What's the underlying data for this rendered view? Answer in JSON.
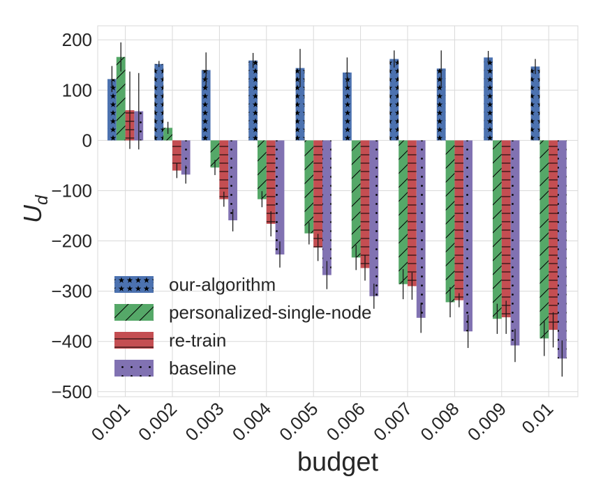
{
  "chart_data": {
    "type": "bar",
    "xlabel": "budget",
    "ylabel": "U_d",
    "ylim": [
      -510,
      228
    ],
    "yticks": [
      200,
      100,
      0,
      -100,
      -200,
      -300,
      -400,
      -500
    ],
    "ytick_labels": [
      "200",
      "100",
      "0",
      "−100",
      "−200",
      "−300",
      "−400",
      "−500"
    ],
    "categories": [
      "0.001",
      "0.002",
      "0.003",
      "0.004",
      "0.005",
      "0.006",
      "0.007",
      "0.008",
      "0.009",
      "0.01"
    ],
    "grid": true,
    "legend_position": "lower-left",
    "series": [
      {
        "name": "our-algorithm",
        "color": "#4c72b0",
        "hatch": "stars",
        "values": [
          122,
          152,
          140,
          159,
          144,
          135,
          162,
          143,
          165,
          147
        ],
        "errors": [
          26,
          6,
          35,
          15,
          38,
          30,
          17,
          36,
          13,
          15
        ]
      },
      {
        "name": "personalized-single-node",
        "color": "#55a868",
        "hatch": "diagonal",
        "values": [
          166,
          25,
          -54,
          -117,
          -185,
          -233,
          -286,
          -322,
          -355,
          -394
        ],
        "errors": [
          29,
          12,
          15,
          16,
          22,
          25,
          30,
          30,
          30,
          35
        ]
      },
      {
        "name": "re-train",
        "color": "#c44e52",
        "hatch": "horizontal",
        "values": [
          60,
          -60,
          -117,
          -166,
          -213,
          -254,
          -290,
          -318,
          -352,
          -377
        ],
        "errors": [
          77,
          15,
          15,
          25,
          27,
          25,
          27,
          14,
          33,
          35
        ]
      },
      {
        "name": "baseline",
        "color": "#8172b2",
        "hatch": "dots",
        "values": [
          58,
          -68,
          -159,
          -227,
          -268,
          -310,
          -353,
          -380,
          -408,
          -434
        ],
        "errors": [
          76,
          18,
          22,
          26,
          28,
          25,
          30,
          33,
          33,
          36
        ]
      }
    ]
  }
}
